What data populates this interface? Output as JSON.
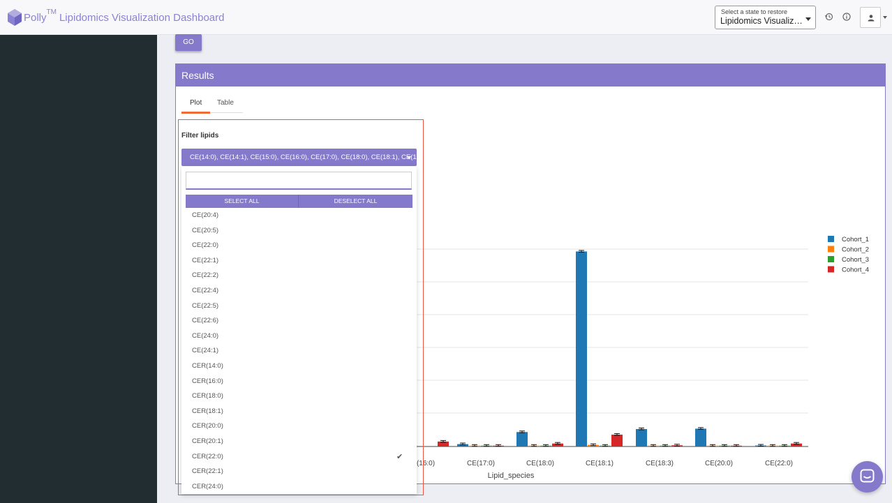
{
  "header": {
    "brand": "Polly",
    "tm": "TM",
    "title": "Lipidomics Visualization Dashboard",
    "state_label": "Select a state to restore",
    "state_value": "Lipidomics Visualiza..."
  },
  "go_label": "GO",
  "results": {
    "title": "Results",
    "tabs": [
      "Plot",
      "Table"
    ]
  },
  "filter": {
    "title": "Filter lipids",
    "selected_text": "CE(14:0), CE(14:1), CE(15:0), CE(16:0), CE(17:0), CE(18:0), CE(18:1), CE(18:",
    "select_all": "SELECT ALL",
    "deselect_all": "DESELECT ALL",
    "items": [
      "CE(20:4)",
      "CE(20:5)",
      "CE(22:0)",
      "CE(22:1)",
      "CE(22:2)",
      "CE(22:4)",
      "CE(22:5)",
      "CE(22:6)",
      "CE(24:0)",
      "CE(24:1)",
      "CER(14:0)",
      "CER(16:0)",
      "CER(18:0)",
      "CER(18:1)",
      "CER(20:0)",
      "CER(20:1)",
      "CER(22:0)",
      "CER(22:1)",
      "CER(24:0)"
    ],
    "checked_item": "CER(22:0)"
  },
  "chart_data": {
    "type": "bar",
    "xlabel": "Lipid_species",
    "categories": [
      "CE(16:0)",
      "CE(17:0)",
      "CE(18:0)",
      "CE(18:1)",
      "CE(18:3)",
      "CE(20:0)",
      "CE(22:0)"
    ],
    "visible_tick_labels": [
      "(16:0)",
      "CE(17:0)",
      "CE(18:0)",
      "CE(18:1)",
      "CE(18:3)",
      "CE(20:0)",
      "CE(22:0)"
    ],
    "series": [
      {
        "name": "Cohort_1",
        "color": "#1f77b4",
        "values": [
          0,
          0.012,
          0.073,
          0.985,
          0.088,
          0.09,
          0.005
        ]
      },
      {
        "name": "Cohort_2",
        "color": "#ff7f0e",
        "values": [
          0,
          0.002,
          0.004,
          0.008,
          0.002,
          0.002,
          0.002
        ]
      },
      {
        "name": "Cohort_3",
        "color": "#2ca02c",
        "values": [
          0,
          0.002,
          0.004,
          0.004,
          0.002,
          0.002,
          0.003
        ]
      },
      {
        "name": "Cohort_4",
        "color": "#d62728",
        "values": [
          0.025,
          0.003,
          0.015,
          0.06,
          0.006,
          0.003,
          0.015
        ]
      }
    ],
    "ylim": [
      0,
      1.05
    ],
    "grid": true,
    "legend": "right"
  }
}
